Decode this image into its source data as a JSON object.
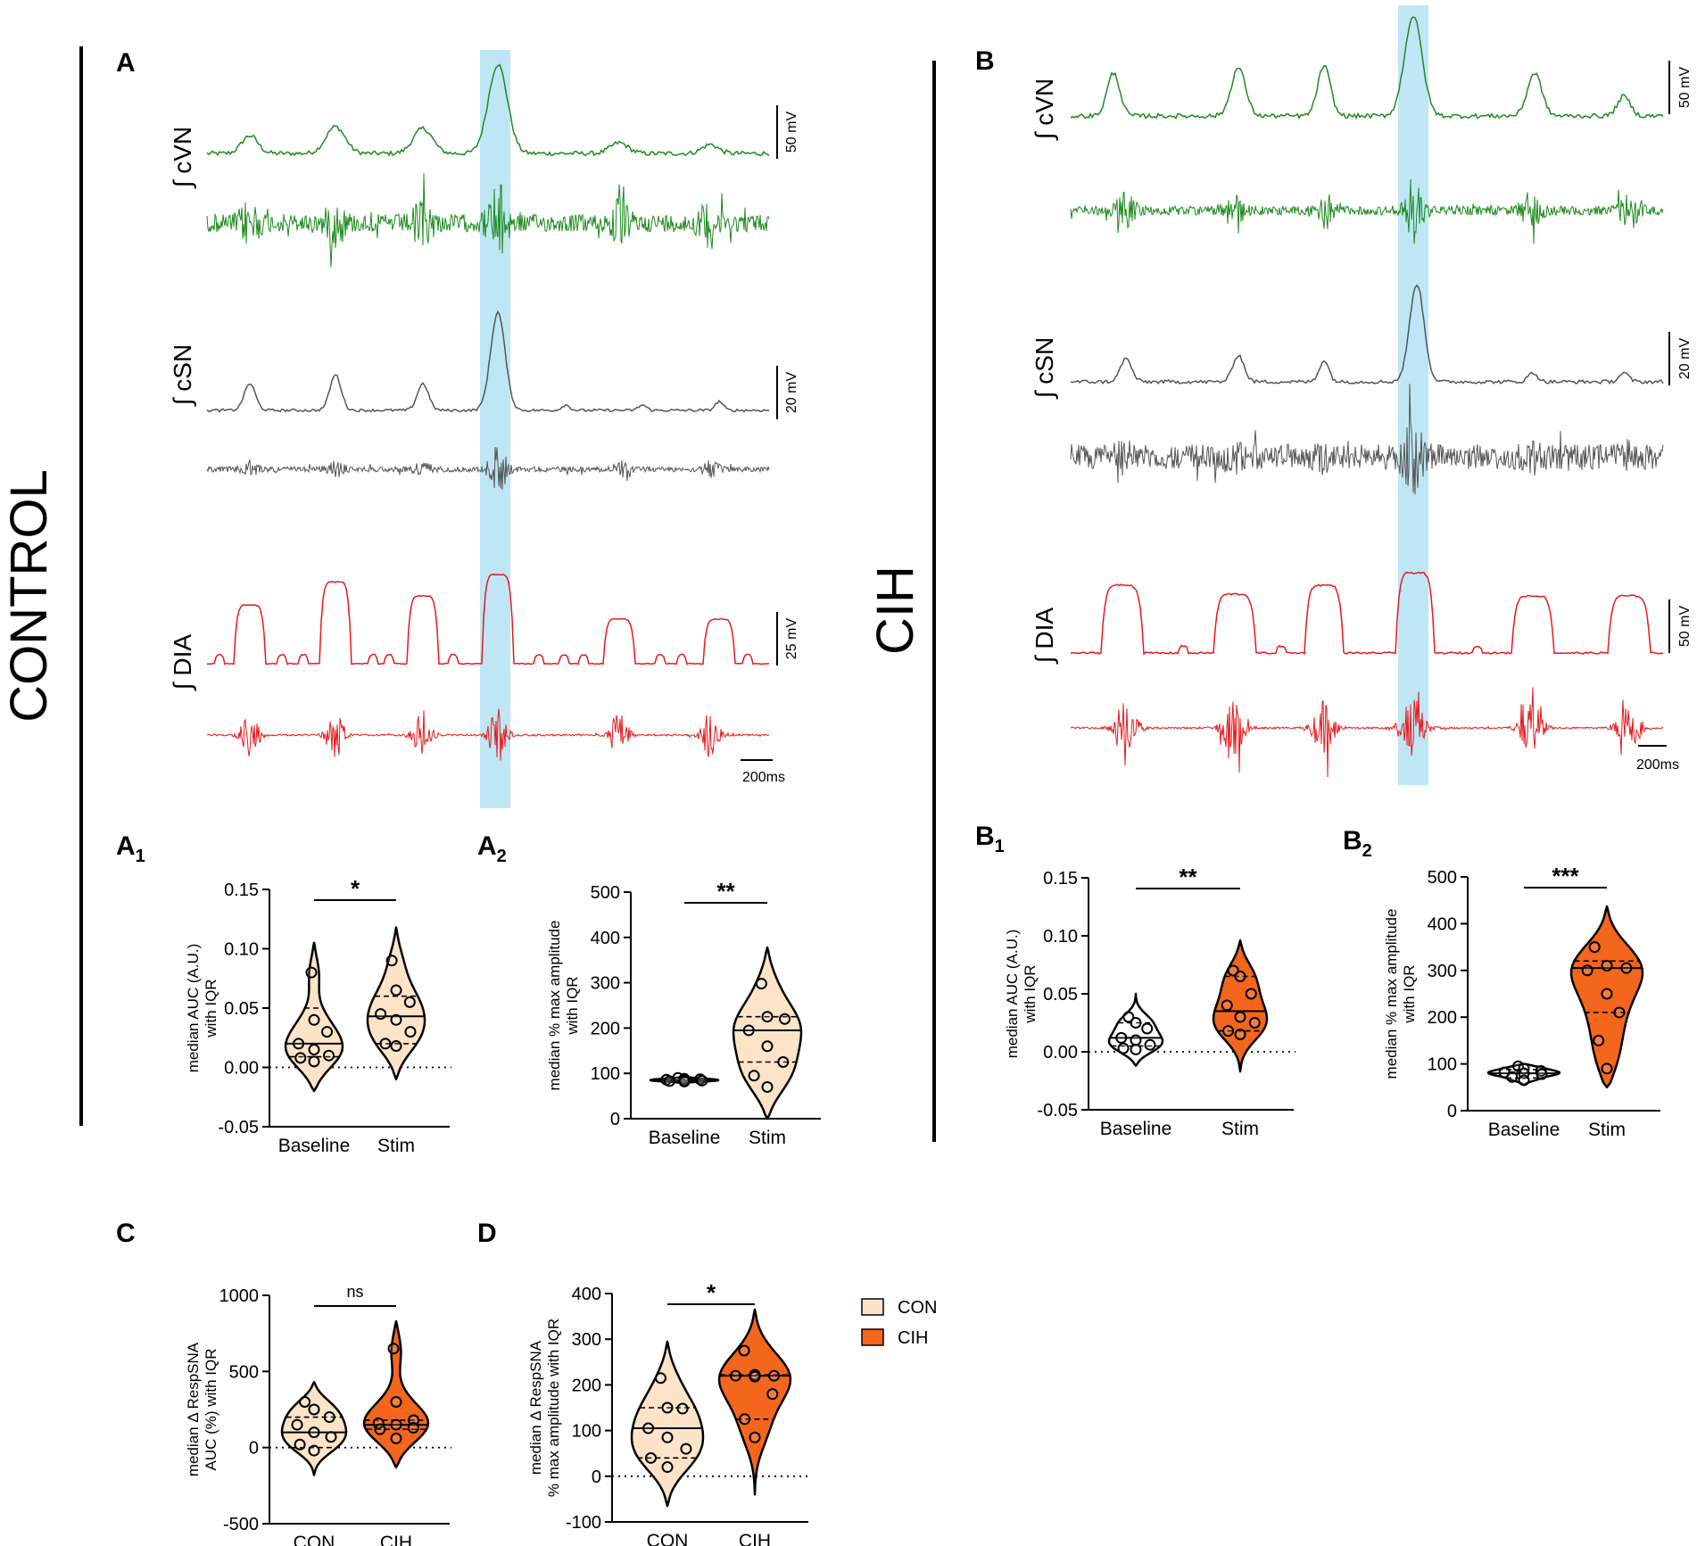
{
  "groups": {
    "control": "CONTROL",
    "cih": "CIH"
  },
  "panel_labels": {
    "A": "A",
    "B": "B",
    "C": "C",
    "D": "D",
    "A1": "A",
    "A1_sub": "1",
    "A2": "A",
    "A2_sub": "2",
    "B1": "B",
    "B1_sub": "1",
    "B2": "B",
    "B2_sub": "2"
  },
  "traces": {
    "cvn": "∫ cVN",
    "csn": "∫ cSN",
    "dia": "∫ DIA",
    "A": {
      "cvn_scale": "50 mV",
      "csn_scale": "20 mV",
      "dia_scale": "25 mV",
      "time_scale": "200ms"
    },
    "B": {
      "cvn_scale": "50 mV",
      "csn_scale": "20 mV",
      "dia_scale": "50 mV",
      "time_scale": "200ms"
    }
  },
  "colors": {
    "cvn": "#1e8a1e",
    "csn": "#555555",
    "dia": "#e8191c",
    "stim_band": "#bfe6f5",
    "con_fill": "#fde4c8",
    "cih_fill": "#f4661b"
  },
  "legend": {
    "con": "CON",
    "cih": "CIH"
  },
  "chart_data": [
    {
      "id": "A1",
      "type": "violin",
      "categories": [
        "Baseline",
        "Stim"
      ],
      "ylabel": [
        "median AUC (A.U.)",
        "with IQR"
      ],
      "yticks": [
        "0.15",
        "0.10",
        "0.05",
        "0.00",
        "-0.05"
      ],
      "ylim": [
        -0.05,
        0.15
      ],
      "significance": "*",
      "series": [
        {
          "name": "Baseline",
          "fill": "con",
          "median": 0.02,
          "q1": 0.009,
          "q3": 0.05,
          "min": -0.02,
          "max": 0.105,
          "points": [
            0.08,
            0.04,
            0.03,
            0.02,
            0.015,
            0.01,
            0.008,
            0.005
          ]
        },
        {
          "name": "Stim",
          "fill": "con",
          "median": 0.043,
          "q1": 0.02,
          "q3": 0.06,
          "min": -0.01,
          "max": 0.118,
          "points": [
            0.09,
            0.065,
            0.055,
            0.045,
            0.04,
            0.03,
            0.02,
            0.018
          ]
        }
      ]
    },
    {
      "id": "A2",
      "type": "violin",
      "categories": [
        "Baseline",
        "Stim"
      ],
      "ylabel": [
        "median % max amplitude",
        "with IQR"
      ],
      "yticks": [
        "500",
        "400",
        "300",
        "200",
        "100",
        "0"
      ],
      "ylim": [
        0,
        500
      ],
      "significance": "**",
      "series": [
        {
          "name": "Baseline",
          "fill": "con",
          "median": 85,
          "q1": 82,
          "q3": 88,
          "min": 78,
          "max": 92,
          "points": [
            90,
            88,
            87,
            86,
            85,
            84,
            83,
            82
          ]
        },
        {
          "name": "Stim",
          "fill": "con",
          "median": 195,
          "q1": 125,
          "q3": 225,
          "min": 0,
          "max": 378,
          "points": [
            298,
            225,
            220,
            195,
            160,
            125,
            95,
            70
          ]
        }
      ]
    },
    {
      "id": "B1",
      "type": "violin",
      "categories": [
        "Baseline",
        "Stim"
      ],
      "ylabel": [
        "median AUC (A.U.)",
        "with IQR"
      ],
      "yticks": [
        "0.15",
        "0.10",
        "0.05",
        "0.00",
        "-0.05"
      ],
      "ylim": [
        -0.05,
        0.15
      ],
      "significance": "**",
      "series": [
        {
          "name": "Baseline",
          "fill": "none",
          "median": 0.012,
          "q1": 0.005,
          "q3": 0.025,
          "min": -0.012,
          "max": 0.05,
          "points": [
            0.03,
            0.025,
            0.02,
            0.012,
            0.01,
            0.006,
            0.003,
            0.002
          ]
        },
        {
          "name": "Stim",
          "fill": "cih",
          "median": 0.035,
          "q1": 0.018,
          "q3": 0.065,
          "min": -0.017,
          "max": 0.096,
          "points": [
            0.07,
            0.065,
            0.05,
            0.04,
            0.03,
            0.025,
            0.018,
            0.015
          ]
        }
      ]
    },
    {
      "id": "B2",
      "type": "violin",
      "categories": [
        "Baseline",
        "Stim"
      ],
      "ylabel": [
        "median % max amplitude",
        "with IQR"
      ],
      "yticks": [
        "500",
        "400",
        "300",
        "200",
        "100",
        "0"
      ],
      "ylim": [
        0,
        500
      ],
      "significance": "***",
      "series": [
        {
          "name": "Baseline",
          "fill": "none",
          "median": 80,
          "q1": 70,
          "q3": 88,
          "min": 55,
          "max": 100,
          "points": [
            95,
            90,
            85,
            82,
            80,
            78,
            72,
            65
          ]
        },
        {
          "name": "Stim",
          "fill": "cih",
          "median": 305,
          "q1": 210,
          "q3": 320,
          "min": 50,
          "max": 437,
          "points": [
            350,
            310,
            305,
            300,
            250,
            210,
            150,
            90
          ]
        }
      ]
    },
    {
      "id": "C",
      "type": "violin",
      "categories": [
        "CON",
        "CIH"
      ],
      "ylabel": [
        "median Δ RespSNA",
        "AUC (%) with IQR"
      ],
      "yticks": [
        "1000",
        "500",
        "0",
        "-500"
      ],
      "ylim": [
        -500,
        1000
      ],
      "significance": "ns",
      "series": [
        {
          "name": "CON",
          "fill": "con",
          "median": 100,
          "q1": 0,
          "q3": 200,
          "min": -180,
          "max": 430,
          "points": [
            300,
            250,
            200,
            150,
            100,
            70,
            20,
            -20
          ]
        },
        {
          "name": "CIH",
          "fill": "cih",
          "median": 150,
          "q1": 120,
          "q3": 180,
          "min": -130,
          "max": 830,
          "points": [
            650,
            300,
            180,
            160,
            150,
            130,
            120,
            60
          ]
        }
      ]
    },
    {
      "id": "D",
      "type": "violin",
      "categories": [
        "CON",
        "CIH"
      ],
      "ylabel": [
        "median Δ RespSNA",
        "% max amplitude with IQR"
      ],
      "yticks": [
        "400",
        "300",
        "200",
        "100",
        "0",
        "-100"
      ],
      "ylim": [
        -100,
        400
      ],
      "significance": "*",
      "series": [
        {
          "name": "CON",
          "fill": "con",
          "median": 105,
          "q1": 40,
          "q3": 150,
          "min": -65,
          "max": 295,
          "points": [
            215,
            150,
            148,
            105,
            85,
            60,
            40,
            20
          ]
        },
        {
          "name": "CIH",
          "fill": "cih",
          "median": 220,
          "q1": 125,
          "q3": 222,
          "min": -40,
          "max": 365,
          "points": [
            275,
            222,
            220,
            220,
            218,
            180,
            125,
            85
          ]
        }
      ]
    }
  ]
}
